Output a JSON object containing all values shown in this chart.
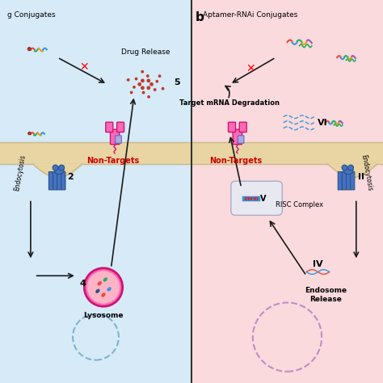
{
  "left_bg": "#d6eaf8",
  "right_bg": "#fadadd",
  "membrane_color": "#e8d5a3",
  "membrane_outline": "#c8b88a",
  "receptor_color": "#4472c4",
  "receptor_outline": "#2c5282",
  "antibody_body_color": "#ff69b4",
  "antibody_outline": "#cc1477",
  "drug_color": "#c0392b",
  "arrow_color": "#1a1a1a",
  "non_target_color": "#cc0000",
  "label_a_text": "g Conjugates",
  "label_b_text": "b",
  "label_b2_text": "Aptamer-RNAi Conjugates",
  "label_nontarget": "Non-Targets",
  "label_2": "2",
  "label_4": "4",
  "label_5": "5",
  "label_drugrelease": "Drug Release",
  "label_lysosome": "Lysosome",
  "label_endocytosis": "Endocytosis",
  "label_II": "II",
  "label_IV": "IV",
  "label_V": "V",
  "label_VI": "VI",
  "label_risc": "RISC Complex",
  "label_endosome": "Endosome\nRelease",
  "label_mrna": "Target mRNA Degradation",
  "label_endocytosis2": "Endocytosis",
  "divider_color": "#333333",
  "lysosome_color": "#ff69b4",
  "lysosome_outline": "#cc1477",
  "risc_bg": "#e8e8f0",
  "endosome_dashed_color": "#9b59b6"
}
